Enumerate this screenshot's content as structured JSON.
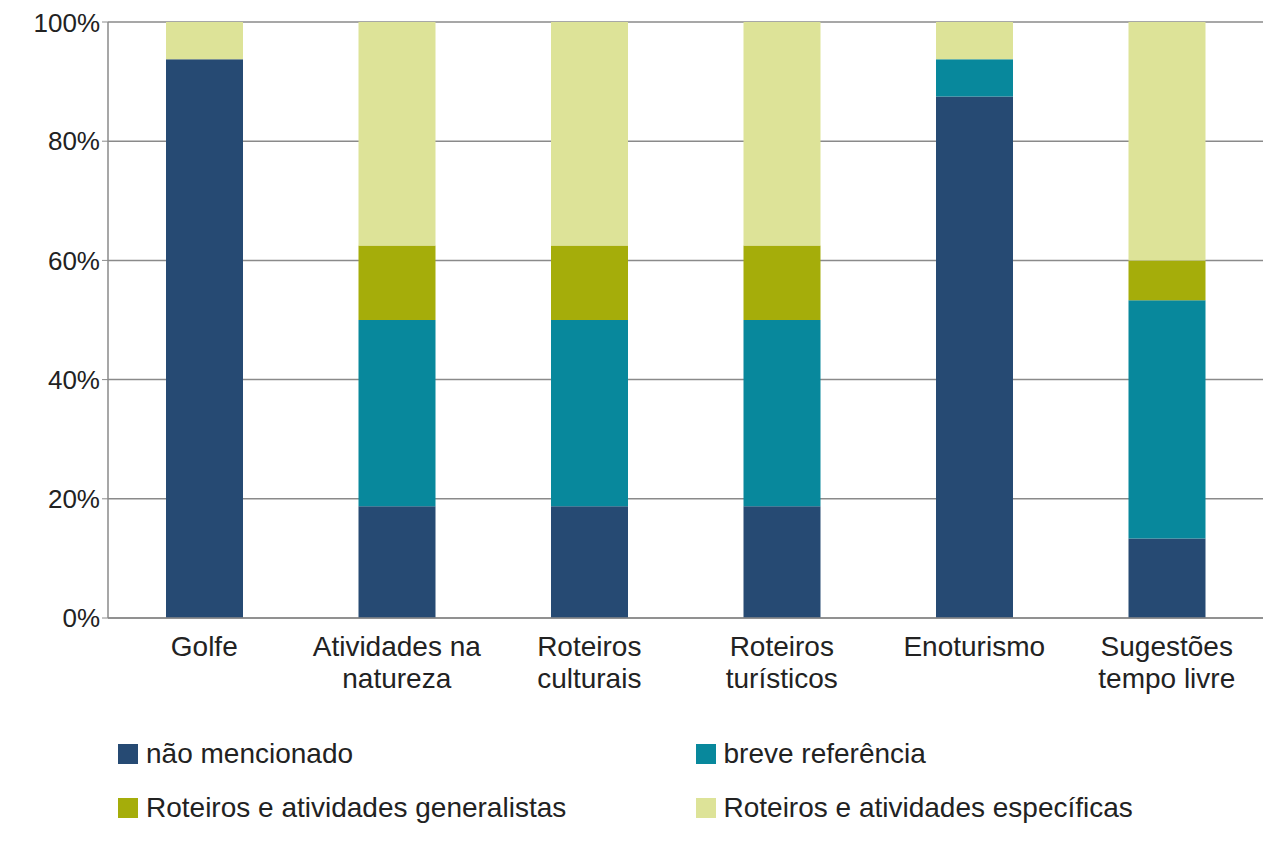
{
  "chart_data": {
    "type": "bar",
    "stacked": true,
    "grid": true,
    "legend": "bottom",
    "categories": [
      "Golfe",
      "Atividades na natureza",
      "Roteiros culturais",
      "Roteiros turísticos",
      "Enoturismo",
      "Sugestões tempo livre"
    ],
    "series": [
      {
        "name": "não mencionado",
        "color": "#264a73",
        "values": [
          93.75,
          18.75,
          18.75,
          18.75,
          87.5,
          13.33
        ]
      },
      {
        "name": "breve referência",
        "color": "#08889c",
        "values": [
          0,
          31.25,
          31.25,
          31.25,
          6.25,
          40
        ]
      },
      {
        "name": "Roteiros e atividades generalistas",
        "color": "#a5ad0a",
        "values": [
          0,
          12.5,
          12.5,
          12.5,
          0,
          6.67
        ]
      },
      {
        "name": "Roteiros e atividades específicas",
        "color": "#dde398",
        "values": [
          6.25,
          37.5,
          37.5,
          37.5,
          6.25,
          40
        ]
      }
    ],
    "ylim": [
      0,
      100
    ],
    "yticks": [
      {
        "value": 0,
        "label": "0%"
      },
      {
        "value": 20,
        "label": "20%"
      },
      {
        "value": 40,
        "label": "40%"
      },
      {
        "value": 60,
        "label": "60%"
      },
      {
        "value": 80,
        "label": "80%"
      },
      {
        "value": 100,
        "label": "100%"
      }
    ]
  }
}
